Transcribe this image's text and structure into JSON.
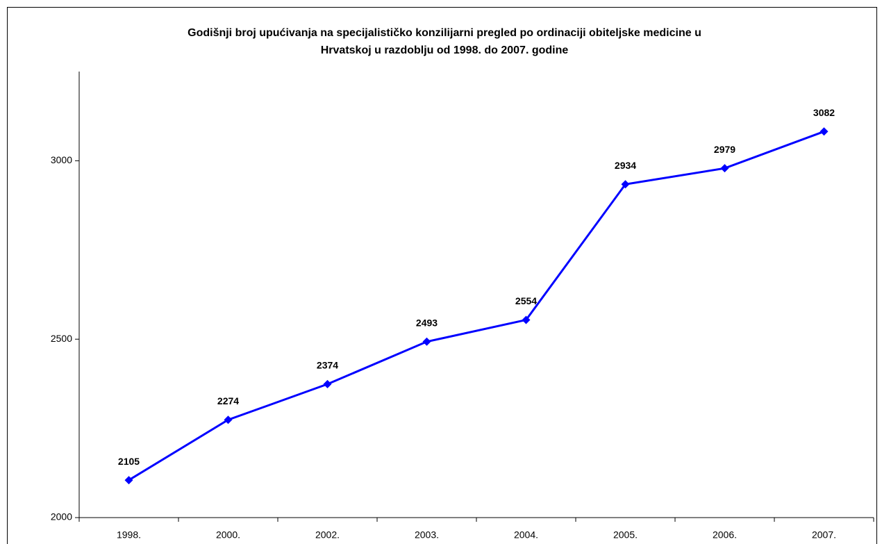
{
  "chart_data": {
    "type": "line",
    "title": [
      "Godišnji broj upućivanja na specijalističko konzilijarni pregled po ordinaciji obiteljske medicine u",
      "Hrvatskoj u razdoblju od 1998. do 2007. godine"
    ],
    "categories": [
      "1998.",
      "2000.",
      "2002.",
      "2003.",
      "2004.",
      "2005.",
      "2006.",
      "2007."
    ],
    "series": [
      {
        "color": "#0000ff",
        "values": [
          2105,
          2274,
          2374,
          2493,
          2554,
          2934,
          2979,
          3082
        ]
      }
    ],
    "ylim": [
      2000,
      3250
    ],
    "yticks": [
      2000,
      2500,
      3000
    ],
    "grid": false,
    "data_labels": true
  }
}
